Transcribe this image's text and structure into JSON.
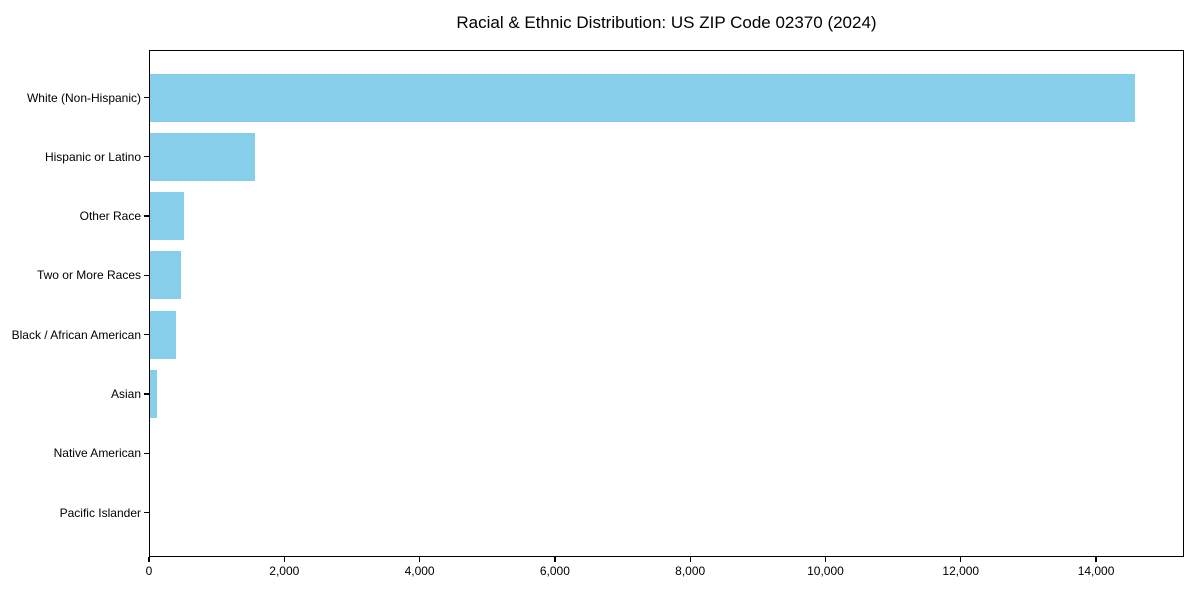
{
  "chart_data": {
    "type": "bar",
    "orientation": "horizontal",
    "title": "Racial & Ethnic Distribution: US ZIP Code 02370 (2024)",
    "categories": [
      "White (Non-Hispanic)",
      "Hispanic or Latino",
      "Other Race",
      "Two or More Races",
      "Black / African American",
      "Asian",
      "Native American",
      "Pacific Islander"
    ],
    "values": [
      14570,
      1560,
      520,
      470,
      400,
      120,
      18,
      4
    ],
    "xlabel": "",
    "ylabel": "",
    "xlim": [
      0,
      15300
    ],
    "x_ticks": [
      0,
      2000,
      4000,
      6000,
      8000,
      10000,
      12000,
      14000
    ],
    "x_tick_labels": [
      "0",
      "2,000",
      "4,000",
      "6,000",
      "8,000",
      "10,000",
      "12,000",
      "14,000"
    ],
    "bar_color": "#87CEEB",
    "axis_color": "#000000",
    "background_color": "#ffffff",
    "grid": false,
    "legend": "none"
  }
}
